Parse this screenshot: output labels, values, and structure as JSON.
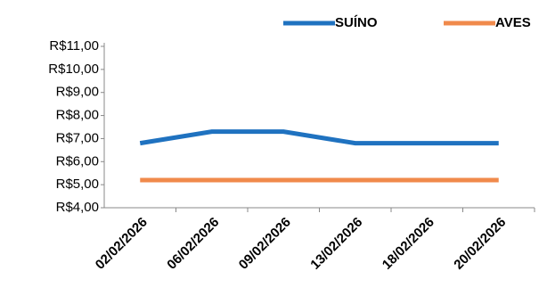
{
  "chart_data": {
    "type": "line",
    "categories": [
      "02/02/2026",
      "06/02/2026",
      "09/02/2026",
      "13/02/2026",
      "18/02/2026",
      "20/02/2026"
    ],
    "series": [
      {
        "name": "SUÍNO",
        "color": "#1f72c0",
        "values": [
          6.8,
          7.3,
          7.3,
          6.8,
          6.8,
          6.8
        ]
      },
      {
        "name": "AVES",
        "color": "#f08a4b",
        "values": [
          5.2,
          5.2,
          5.2,
          5.2,
          5.2,
          5.2
        ]
      }
    ],
    "ylim": [
      4,
      11
    ],
    "yticks": [
      {
        "value": 4,
        "label": "R$4,00"
      },
      {
        "value": 5,
        "label": "R$5,00"
      },
      {
        "value": 6,
        "label": "R$6,00"
      },
      {
        "value": 7,
        "label": "R$7,00"
      },
      {
        "value": 8,
        "label": "R$8,00"
      },
      {
        "value": 9,
        "label": "R$9,00"
      },
      {
        "value": 10,
        "label": "R$10,00"
      },
      {
        "value": 11,
        "label": "R$11,00"
      }
    ],
    "legend": "top",
    "grid": false
  }
}
